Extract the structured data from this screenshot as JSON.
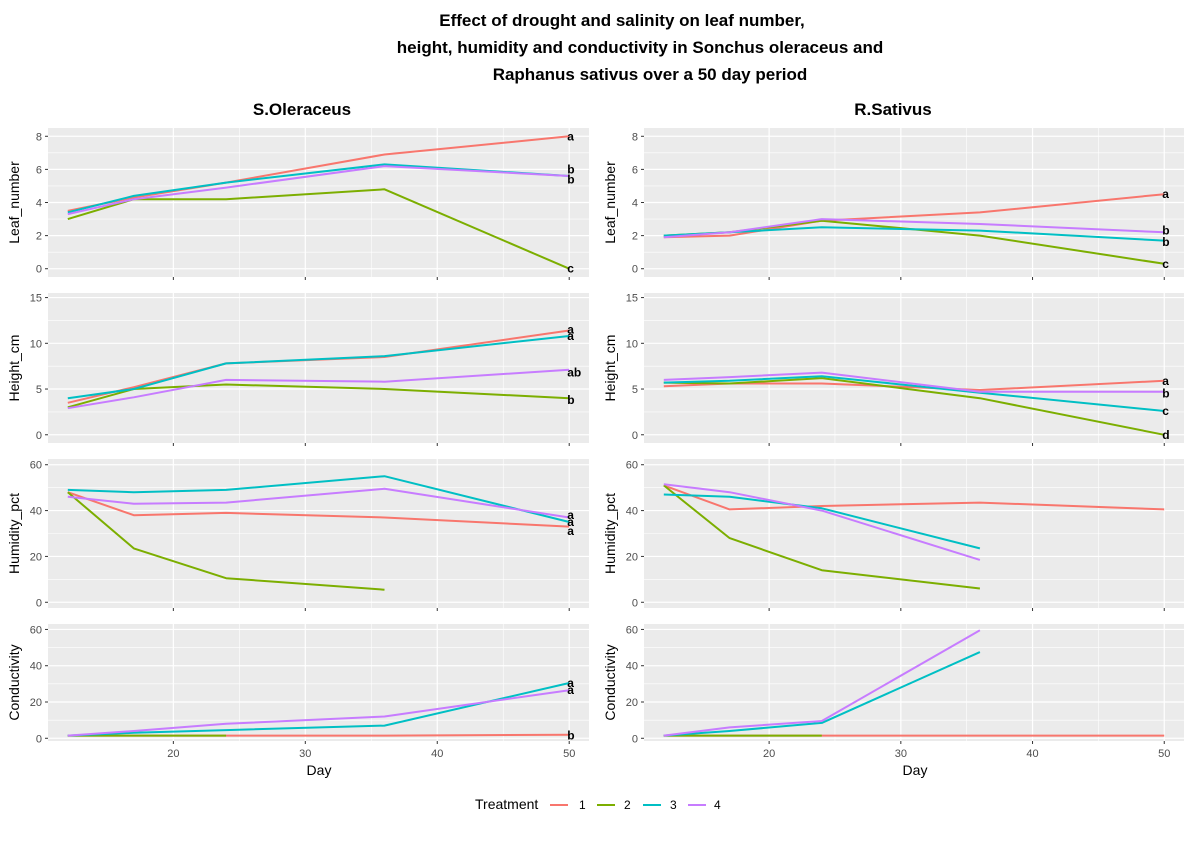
{
  "title": [
    "Effect of drought and salinity on leaf number,",
    "height, humidity and conductivity in Sonchus oleraceus and",
    "Raphanus sativus over a 50 day period"
  ],
  "legend": {
    "title": "Treatment",
    "items": [
      "1",
      "2",
      "3",
      "4"
    ]
  },
  "colors": {
    "1": "#F8766D",
    "2": "#7CAE00",
    "3": "#00BFC4",
    "4": "#C77CFF",
    "panel": "#EBEBEB",
    "grid": "#FFFFFF",
    "text": "#4D4D4D"
  },
  "chart_data": {
    "type": "line",
    "xlabel": "Day",
    "xlim": [
      10.5,
      51.5
    ],
    "xticks": [
      20,
      30,
      40,
      50
    ],
    "columns": [
      {
        "key": "so",
        "title": "S.Oleraceus"
      },
      {
        "key": "rs",
        "title": "R.Sativus"
      }
    ],
    "rows": [
      {
        "key": "leaf",
        "ylabel": "Leaf_number",
        "ylim": [
          -0.5,
          8.5
        ],
        "yticks": [
          0,
          2,
          4,
          6,
          8
        ]
      },
      {
        "key": "height",
        "ylabel": "Height_cm",
        "ylim": [
          -0.9,
          15.5
        ],
        "yticks": [
          0,
          5,
          10,
          15
        ]
      },
      {
        "key": "humidity",
        "ylabel": "Humidity_pct",
        "ylim": [
          -2.5,
          62.5
        ],
        "yticks": [
          0,
          20,
          40,
          60
        ]
      },
      {
        "key": "conductivity",
        "ylabel": "Conductivity",
        "ylim": [
          -1.5,
          63
        ],
        "yticks": [
          0,
          20,
          40,
          60
        ]
      }
    ],
    "panels": {
      "so": {
        "leaf": {
          "series": [
            {
              "name": "1",
              "x": [
                12,
                17,
                24,
                36,
                50
              ],
              "y": [
                3.5,
                4.3,
                5.2,
                6.9,
                8.0
              ]
            },
            {
              "name": "2",
              "x": [
                12,
                17,
                24,
                36,
                50
              ],
              "y": [
                3.0,
                4.2,
                4.2,
                4.8,
                0.0
              ]
            },
            {
              "name": "3",
              "x": [
                12,
                17,
                24,
                36,
                50
              ],
              "y": [
                3.4,
                4.4,
                5.2,
                6.3,
                5.6
              ]
            },
            {
              "name": "4",
              "x": [
                12,
                17,
                24,
                36,
                50
              ],
              "y": [
                3.3,
                4.2,
                4.9,
                6.2,
                5.6
              ]
            }
          ],
          "letters": [
            {
              "y": 8.0,
              "text": "a"
            },
            {
              "y": 6.0,
              "text": "b"
            },
            {
              "y": 5.4,
              "text": "b"
            },
            {
              "y": 0.0,
              "text": "c"
            }
          ]
        },
        "height": {
          "series": [
            {
              "name": "1",
              "x": [
                12,
                17,
                24,
                36,
                50
              ],
              "y": [
                3.5,
                5.2,
                7.8,
                8.5,
                11.4
              ]
            },
            {
              "name": "2",
              "x": [
                12,
                17,
                24,
                36,
                50
              ],
              "y": [
                3.0,
                5.0,
                5.5,
                5.0,
                4.0
              ]
            },
            {
              "name": "3",
              "x": [
                12,
                17,
                24,
                36,
                50
              ],
              "y": [
                4.0,
                5.0,
                7.8,
                8.6,
                10.8
              ]
            },
            {
              "name": "4",
              "x": [
                12,
                17,
                24,
                36,
                50
              ],
              "y": [
                2.9,
                4.1,
                6.0,
                5.8,
                7.1
              ]
            }
          ],
          "letters": [
            {
              "y": 11.5,
              "text": "a"
            },
            {
              "y": 10.8,
              "text": "a"
            },
            {
              "y": 6.8,
              "text": "ab"
            },
            {
              "y": 3.8,
              "text": "b"
            }
          ]
        },
        "humidity": {
          "series": [
            {
              "name": "1",
              "x": [
                12,
                17,
                24,
                36,
                50
              ],
              "y": [
                48,
                38,
                39,
                37,
                33
              ]
            },
            {
              "name": "2",
              "x": [
                12,
                17,
                24,
                36
              ],
              "y": [
                48,
                23.5,
                10.5,
                5.5
              ]
            },
            {
              "name": "3",
              "x": [
                12,
                17,
                24,
                36,
                50
              ],
              "y": [
                49,
                48,
                49,
                55,
                35
              ]
            },
            {
              "name": "4",
              "x": [
                12,
                17,
                24,
                36,
                50
              ],
              "y": [
                46,
                43,
                43.5,
                49.5,
                37
              ]
            }
          ],
          "letters": [
            {
              "y": 38,
              "text": "a"
            },
            {
              "y": 35,
              "text": "a"
            },
            {
              "y": 31,
              "text": "a"
            }
          ]
        },
        "conductivity": {
          "series": [
            {
              "name": "1",
              "x": [
                12,
                17,
                24,
                36,
                50
              ],
              "y": [
                1.5,
                1.5,
                1.5,
                1.5,
                2.0
              ]
            },
            {
              "name": "2",
              "x": [
                12,
                17,
                24
              ],
              "y": [
                1.5,
                1.5,
                1.5
              ]
            },
            {
              "name": "3",
              "x": [
                12,
                17,
                24,
                36,
                50
              ],
              "y": [
                1.5,
                3.0,
                4.5,
                7.0,
                30.5
              ]
            },
            {
              "name": "4",
              "x": [
                12,
                17,
                24,
                36,
                50
              ],
              "y": [
                1.5,
                4.0,
                8.0,
                12.0,
                26.5
              ]
            }
          ],
          "letters": [
            {
              "y": 30.5,
              "text": "a"
            },
            {
              "y": 26.5,
              "text": "a"
            },
            {
              "y": 1.5,
              "text": "b"
            }
          ]
        }
      },
      "rs": {
        "leaf": {
          "series": [
            {
              "name": "1",
              "x": [
                12,
                17,
                24,
                36,
                50
              ],
              "y": [
                1.9,
                2.0,
                2.9,
                3.4,
                4.5
              ]
            },
            {
              "name": "2",
              "x": [
                12,
                17,
                24,
                36,
                50
              ],
              "y": [
                2.0,
                2.2,
                2.9,
                2.0,
                0.3
              ]
            },
            {
              "name": "3",
              "x": [
                12,
                17,
                24,
                36,
                50
              ],
              "y": [
                2.0,
                2.2,
                2.5,
                2.3,
                1.7
              ]
            },
            {
              "name": "4",
              "x": [
                12,
                17,
                24,
                36,
                50
              ],
              "y": [
                1.9,
                2.2,
                3.0,
                2.7,
                2.2
              ]
            }
          ],
          "letters": [
            {
              "y": 4.5,
              "text": "a"
            },
            {
              "y": 2.3,
              "text": "b"
            },
            {
              "y": 1.6,
              "text": "b"
            },
            {
              "y": 0.3,
              "text": "c"
            }
          ]
        },
        "height": {
          "series": [
            {
              "name": "1",
              "x": [
                12,
                17,
                24,
                36,
                50
              ],
              "y": [
                5.3,
                5.6,
                5.6,
                4.9,
                5.9
              ]
            },
            {
              "name": "2",
              "x": [
                12,
                17,
                24,
                36,
                50
              ],
              "y": [
                5.7,
                5.6,
                6.2,
                4.0,
                0.0
              ]
            },
            {
              "name": "3",
              "x": [
                12,
                17,
                24,
                36,
                50
              ],
              "y": [
                5.7,
                5.9,
                6.4,
                4.6,
                2.6
              ]
            },
            {
              "name": "4",
              "x": [
                12,
                17,
                24,
                36,
                50
              ],
              "y": [
                6.0,
                6.3,
                6.8,
                4.7,
                4.7
              ]
            }
          ],
          "letters": [
            {
              "y": 5.9,
              "text": "a"
            },
            {
              "y": 4.5,
              "text": "b"
            },
            {
              "y": 2.6,
              "text": "c"
            },
            {
              "y": 0.0,
              "text": "d"
            }
          ]
        },
        "humidity": {
          "series": [
            {
              "name": "1",
              "x": [
                12,
                17,
                24,
                36,
                50
              ],
              "y": [
                51,
                40.5,
                42,
                43.5,
                40.5
              ]
            },
            {
              "name": "2",
              "x": [
                12,
                17,
                24,
                36
              ],
              "y": [
                51,
                28,
                14,
                6
              ]
            },
            {
              "name": "3",
              "x": [
                12,
                17,
                24,
                36
              ],
              "y": [
                47,
                46,
                41,
                23.5
              ]
            },
            {
              "name": "4",
              "x": [
                12,
                17,
                24,
                36
              ],
              "y": [
                51.5,
                48,
                40,
                18.5
              ]
            }
          ],
          "letters": []
        },
        "conductivity": {
          "series": [
            {
              "name": "1",
              "x": [
                12,
                17,
                24,
                36,
                50
              ],
              "y": [
                1.5,
                1.5,
                1.5,
                1.5,
                1.5
              ]
            },
            {
              "name": "2",
              "x": [
                12,
                17,
                24
              ],
              "y": [
                1.5,
                1.5,
                1.5
              ]
            },
            {
              "name": "3",
              "x": [
                12,
                17,
                24,
                36
              ],
              "y": [
                1.5,
                4.0,
                8.5,
                47.5
              ]
            },
            {
              "name": "4",
              "x": [
                12,
                17,
                24,
                36
              ],
              "y": [
                1.5,
                6.0,
                9.5,
                59.5
              ]
            }
          ],
          "letters": []
        }
      }
    }
  }
}
